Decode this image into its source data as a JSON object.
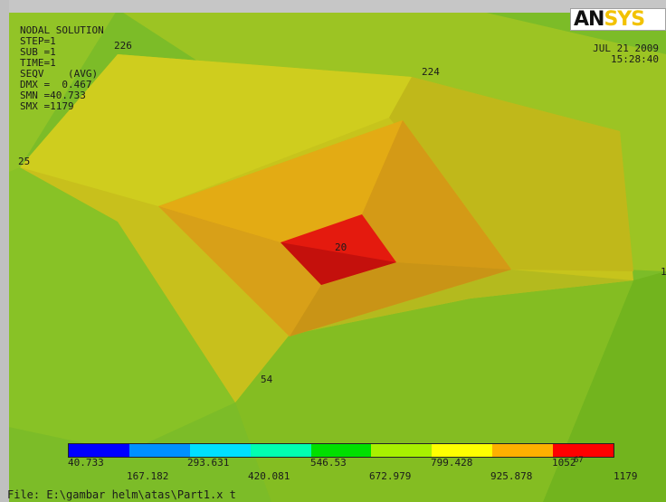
{
  "header": {
    "lines": [
      "NODAL SOLUTION",
      "STEP=1",
      "SUB =1",
      "TIME=1",
      "SEQV    (AVG)",
      "DMX =  0.467",
      "SMN =40.733",
      "SMX =1179"
    ]
  },
  "logo": {
    "main": "AN",
    "tail": "SYS"
  },
  "date": {
    "day": "JUL 21 2009",
    "time": "15:28:40"
  },
  "node_labels": {
    "n226": "226",
    "n224": "224",
    "n25": "25",
    "n20": "20",
    "n54": "54",
    "n1": "1"
  },
  "legend": {
    "colors": [
      "#0000ff",
      "#0090ff",
      "#00e0ff",
      "#00ffb0",
      "#00e000",
      "#a8f000",
      "#ffff00",
      "#ffb000",
      "#ff0000"
    ],
    "values_top": [
      "40.733",
      "293.631",
      "546.53",
      "799.428",
      "1052"
    ],
    "values_bottom": [
      "167.182",
      "420.081",
      "672.979",
      "925.878",
      "1179"
    ],
    "extra": "67"
  },
  "file": {
    "label": "File: E:\\gambar helm\\atas\\Part1.x t"
  }
}
